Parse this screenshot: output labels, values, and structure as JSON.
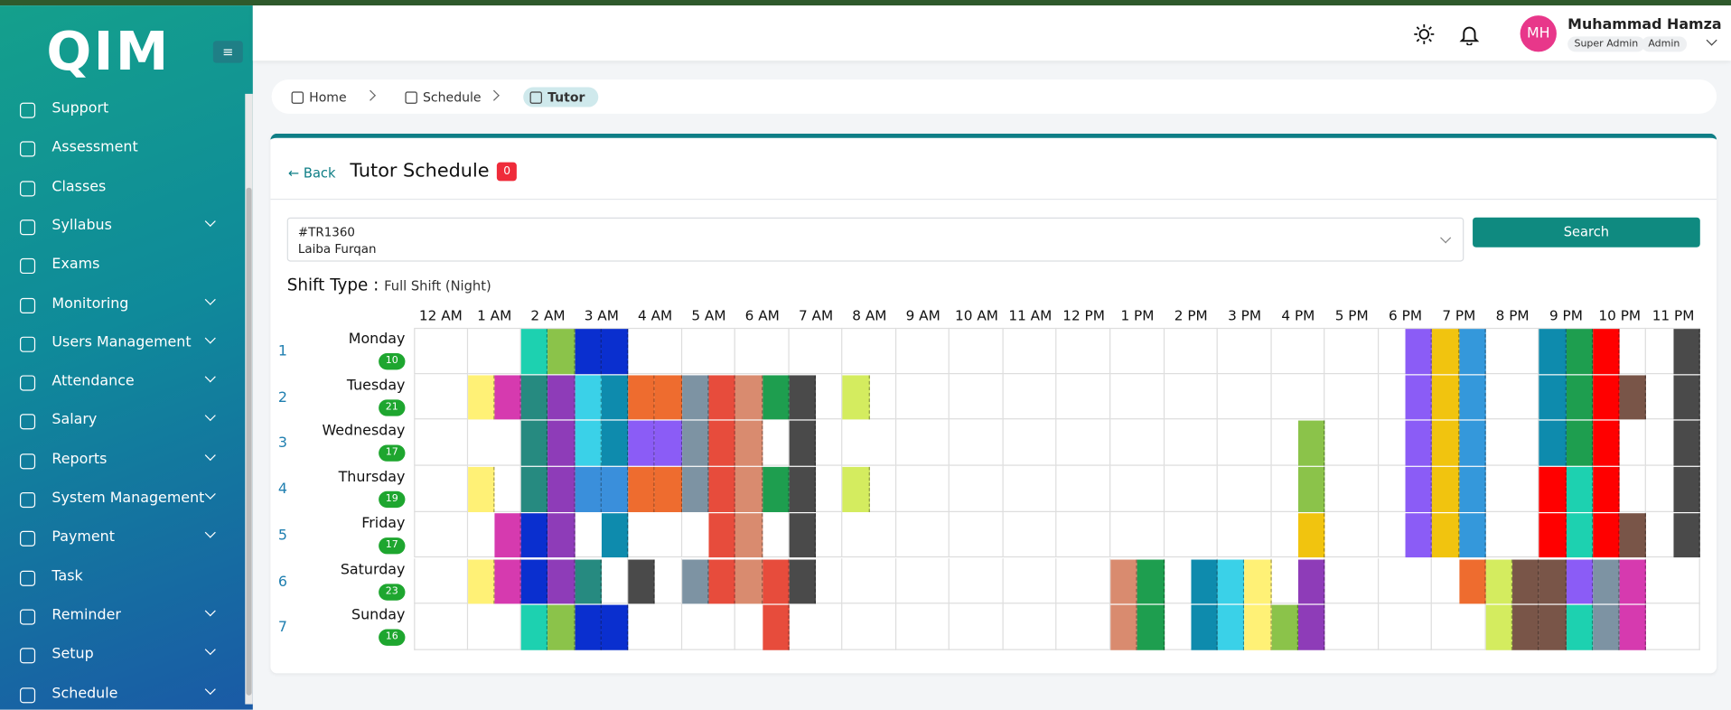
{
  "sidebar": {
    "logo": "QIM",
    "items": [
      {
        "label": "Support",
        "has_submenu": false
      },
      {
        "label": "Assessment",
        "has_submenu": false
      },
      {
        "label": "Classes",
        "has_submenu": false
      },
      {
        "label": "Syllabus",
        "has_submenu": true
      },
      {
        "label": "Exams",
        "has_submenu": false
      },
      {
        "label": "Monitoring",
        "has_submenu": true
      },
      {
        "label": "Users Management",
        "has_submenu": true
      },
      {
        "label": "Attendance",
        "has_submenu": true
      },
      {
        "label": "Salary",
        "has_submenu": true
      },
      {
        "label": "Reports",
        "has_submenu": true
      },
      {
        "label": "System Management",
        "has_submenu": true
      },
      {
        "label": "Payment",
        "has_submenu": true
      },
      {
        "label": "Task",
        "has_submenu": false
      },
      {
        "label": "Reminder",
        "has_submenu": true
      },
      {
        "label": "Setup",
        "has_submenu": true
      },
      {
        "label": "Schedule",
        "has_submenu": true
      }
    ]
  },
  "header": {
    "initials": "MH",
    "user_name": "Muhammad Hamza",
    "roles": [
      "Super Admin",
      "Admin"
    ]
  },
  "breadcrumb": [
    "Home",
    "Schedule",
    "Tutor"
  ],
  "page": {
    "back": "Back",
    "title": "Tutor Schedule",
    "badge": 0,
    "tutor_code": "#TR1360",
    "tutor_name": "Laiba Furqan",
    "search": "Search",
    "shift_label": "Shift Type :",
    "shift_value": "Full Shift (Night)"
  },
  "schedule": {
    "hours": [
      "12 AM",
      "1 AM",
      "2 AM",
      "3 AM",
      "4 AM",
      "5 AM",
      "6 AM",
      "7 AM",
      "8 AM",
      "9 AM",
      "10 AM",
      "11 AM",
      "12 PM",
      "1 PM",
      "2 PM",
      "3 PM",
      "4 PM",
      "5 PM",
      "6 PM",
      "7 PM",
      "8 PM",
      "9 PM",
      "10 PM",
      "11 PM"
    ],
    "days": [
      {
        "index": 1,
        "day": "Monday",
        "count": 10
      },
      {
        "index": 2,
        "day": "Tuesday",
        "count": 21
      },
      {
        "index": 3,
        "day": "Wednesday",
        "count": 17
      },
      {
        "index": 4,
        "day": "Thursday",
        "count": 19
      },
      {
        "index": 5,
        "day": "Friday",
        "count": 17
      },
      {
        "index": 6,
        "day": "Saturday",
        "count": 23
      },
      {
        "index": 7,
        "day": "Sunday",
        "count": 16
      }
    ]
  }
}
